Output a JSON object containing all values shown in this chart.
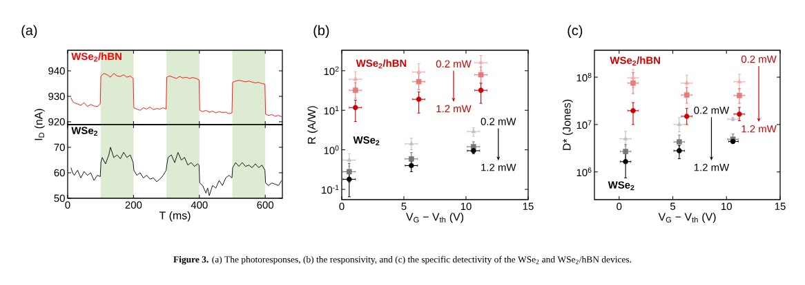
{
  "chart_data": [
    {
      "type": "line",
      "title": "(a)",
      "ylabel": "I$_{D}$ (nA)",
      "xlim": [
        0,
        652
      ],
      "xticks": [
        0,
        200,
        400,
        600
      ],
      "ylim": [
        918.9,
        948.1
      ],
      "yticks": [
        920,
        930,
        940
      ],
      "tick_labels": "y",
      "bands": [
        {
          "axis": "x",
          "from": 100,
          "to": 200,
          "color": "#dcebd2"
        },
        {
          "axis": "x",
          "from": 300,
          "to": 400,
          "color": "#dcebd2"
        },
        {
          "axis": "x",
          "from": 500,
          "to": 600,
          "color": "#dcebd2"
        }
      ],
      "series": [
        {
          "name": "WSe$_{2}$/hBN",
          "color": "#ff0000",
          "x": [
            10,
            15,
            20,
            30,
            40,
            50,
            60,
            70,
            80,
            90,
            99,
            101,
            110,
            120,
            130,
            140,
            150,
            160,
            170,
            180,
            190,
            199,
            201,
            210,
            220,
            230,
            240,
            250,
            260,
            270,
            280,
            290,
            299,
            301,
            310,
            320,
            330,
            340,
            350,
            360,
            370,
            380,
            390,
            399,
            401,
            410,
            420,
            430,
            440,
            450,
            460,
            470,
            480,
            490,
            499,
            501,
            510,
            520,
            530,
            540,
            550,
            560,
            570,
            580,
            590,
            599,
            601,
            610,
            620,
            630,
            640,
            650
          ],
          "values": [
            929.5,
            928,
            927.5,
            927,
            926.5,
            927.5,
            926,
            926.8,
            926.2,
            926,
            927,
            938,
            939,
            938.5,
            937.5,
            939,
            938,
            937.8,
            938.5,
            937.5,
            938,
            937,
            925.5,
            925,
            924.5,
            925.5,
            925,
            925.8,
            924.8,
            925.2,
            925,
            925.5,
            925,
            937.5,
            938,
            937.5,
            937,
            937.8,
            937.2,
            937.5,
            937,
            937.4,
            937,
            936.5,
            924.5,
            924,
            924.5,
            923.8,
            924.2,
            923.5,
            924,
            923.6,
            923.8,
            923.2,
            923.5,
            935.5,
            936,
            936.3,
            936,
            935.7,
            936,
            935.6,
            935.3,
            935.5,
            935,
            934.8,
            923,
            922.5,
            922.8,
            922.2,
            922.5,
            922
          ]
        }
      ],
      "annotations": [
        "**Figure 3.** (a) The photoresponses, (b) the responsivity, and (c) the specific detectivity of the WSe$_{2}$ and WSe$_{2}$/hBN devices."
      ]
    },
    {
      "type": "line",
      "xlabel": "T (ms)",
      "xlim": [
        0,
        652
      ],
      "xticks": [
        0,
        200,
        400,
        600
      ],
      "ylim": [
        50,
        78.9
      ],
      "yticks": [
        50,
        60,
        70
      ],
      "bands": [
        {
          "axis": "x",
          "from": 100,
          "to": 200,
          "color": "#dcebd2"
        },
        {
          "axis": "x",
          "from": 300,
          "to": 400,
          "color": "#dcebd2"
        },
        {
          "axis": "x",
          "from": 500,
          "to": 600,
          "color": "#dcebd2"
        }
      ],
      "series": [
        {
          "name": "WSe$_{2}$",
          "color": "#000000",
          "x": [
            10,
            15,
            20,
            30,
            40,
            50,
            60,
            70,
            80,
            90,
            99,
            101,
            105,
            115,
            125,
            130,
            140,
            150,
            160,
            170,
            180,
            190,
            199,
            201,
            210,
            220,
            230,
            240,
            250,
            260,
            270,
            280,
            290,
            299,
            301,
            305,
            315,
            325,
            335,
            345,
            355,
            365,
            375,
            385,
            395,
            399,
            401,
            410,
            420,
            425,
            430,
            440,
            450,
            460,
            470,
            480,
            490,
            499,
            501,
            510,
            520,
            530,
            540,
            550,
            560,
            570,
            580,
            590,
            599,
            601,
            610,
            620,
            630,
            640,
            650
          ],
          "values": [
            62,
            60,
            59,
            61,
            58,
            60.5,
            59,
            60,
            57,
            59,
            58.5,
            64,
            66,
            63.5,
            67,
            70,
            66,
            67,
            65.5,
            68,
            66,
            67,
            64,
            61,
            59,
            60,
            58,
            59,
            57.5,
            58,
            56.5,
            57.5,
            59,
            61,
            63,
            66,
            67,
            64,
            68,
            65,
            66,
            63,
            64,
            62.5,
            63.5,
            63,
            56,
            55,
            52,
            54,
            51,
            55,
            54,
            57,
            55,
            58,
            59,
            58,
            62,
            64,
            62.5,
            64,
            62.5,
            63,
            62,
            63.5,
            62,
            63,
            61,
            56,
            55,
            56,
            55.5,
            55,
            57
          ]
        }
      ]
    },
    {
      "type": "scatter",
      "title": "(b)",
      "xlabel": "V$_{G}$ − V$_{th}$ (V)",
      "ylabel": "R (A/W)",
      "xlim": [
        0,
        15
      ],
      "xticks": [
        0,
        5,
        10,
        15
      ],
      "ylim": [
        0.055,
        330
      ],
      "log": "y",
      "yticks": [
        {
          "value": 0.1,
          "label": "10$^{-1}$"
        },
        {
          "value": 1,
          "label": "10$^{0}$"
        },
        {
          "value": 10,
          "label": "10$^{1}$"
        },
        {
          "value": 100,
          "label": "10$^{2}$"
        }
      ],
      "series": [
        {
          "color": "#f4a8a8",
          "marker": "triangle",
          "x": [
            1.1,
            6.2,
            11.2
          ],
          "values": [
            61,
            93,
            160
          ],
          "errors": [
            [
              38,
              95
            ],
            [
              58,
              150
            ],
            [
              100,
              245
            ]
          ],
          "xerrors": [
            0.5,
            0.5,
            0.5
          ]
        },
        {
          "color": "#e87a7a",
          "marker": "square",
          "x": [
            1.1,
            6.2,
            11.2
          ],
          "values": [
            32,
            53,
            79
          ],
          "errors": [
            [
              20,
              50
            ],
            [
              33,
              85
            ],
            [
              50,
              125
            ]
          ],
          "xerrors": [
            0.5,
            0.5,
            0.5
          ]
        },
        {
          "color": "#cc0000",
          "marker": "circle",
          "x": [
            1.1,
            6.2,
            11.2
          ],
          "values": [
            11.7,
            19,
            32
          ],
          "errors": [
            [
              5.2,
              18
            ],
            [
              8.5,
              29
            ],
            [
              15,
              48
            ]
          ],
          "xerrors": [
            0.5,
            0.5,
            0.5
          ]
        },
        {
          "color": "#c0c0c0",
          "marker": "triangle",
          "x": [
            0.6,
            5.6,
            10.6
          ],
          "values": [
            0.55,
            1.42,
            2.9
          ],
          "errors": [
            [
              0.38,
              0.8
            ],
            [
              1.0,
              2.0
            ],
            [
              2.2,
              3.6
            ]
          ],
          "xerrors": [
            0.5,
            0.5,
            0.5
          ]
        },
        {
          "color": "#777777",
          "marker": "square",
          "x": [
            0.6,
            5.6,
            10.6
          ],
          "values": [
            0.28,
            0.59,
            1.2
          ],
          "errors": [
            [
              0.15,
              0.45
            ],
            [
              0.4,
              0.85
            ],
            [
              0.9,
              1.6
            ]
          ],
          "xerrors": [
            0.5,
            0.5,
            0.5
          ]
        },
        {
          "color": "#000000",
          "marker": "circle",
          "x": [
            0.6,
            5.6,
            10.6
          ],
          "values": [
            0.18,
            0.4,
            0.95
          ],
          "errors": [
            [
              0.065,
              0.3
            ],
            [
              0.28,
              0.52
            ],
            [
              0.8,
              1.15
            ]
          ],
          "xerrors": [
            0.5,
            0.5,
            0.5
          ]
        }
      ],
      "annotations": [
        "WSe$_{2}$/hBN",
        "0.2 mW",
        "1.2 mW",
        "WSe$_{2}$",
        "0.2 mW",
        "1.2 mW"
      ]
    },
    {
      "type": "scatter",
      "title": "(c)",
      "xlabel": "V$_{G}$ − V$_{th}$ (V)",
      "ylabel": "D* (Jones)",
      "xlim": [
        -2.3,
        15
      ],
      "xticks": [
        0,
        5,
        10,
        15
      ],
      "ylim": [
        260000,
        370000000
      ],
      "log": "y",
      "yticks": [
        {
          "value": 1000000,
          "label": "10$^{6}$"
        },
        {
          "value": 10000000,
          "label": "10$^{7}$"
        },
        {
          "value": 100000000,
          "label": "10$^{8}$"
        }
      ],
      "series": [
        {
          "color": "#f4a8a8",
          "marker": "triangle",
          "x": [
            1.3,
            6.3,
            11.2
          ],
          "values": [
            97000000,
            75000000,
            80000000
          ],
          "errors": [
            [
              60000000,
              145000000
            ],
            [
              50000000,
              110000000
            ],
            [
              55000000,
              115000000
            ]
          ],
          "xerrors": [
            0.5,
            0.5,
            0.5
          ]
        },
        {
          "color": "#e87a7a",
          "marker": "square",
          "x": [
            1.3,
            6.3,
            11.2
          ],
          "values": [
            75000000,
            42000000,
            41000000
          ],
          "errors": [
            [
              45000000,
              125000000
            ],
            [
              28000000,
              60000000
            ],
            [
              28000000,
              58000000
            ]
          ],
          "xerrors": [
            0.5,
            0.5,
            0.5
          ]
        },
        {
          "color": "#cc0000",
          "marker": "circle",
          "x": [
            1.3,
            6.3,
            11.2
          ],
          "values": [
            19600000,
            14900000,
            16600000
          ],
          "errors": [
            [
              10000000,
              29000000
            ],
            [
              10000000,
              22000000
            ],
            [
              12000000,
              23000000
            ]
          ],
          "xerrors": [
            0.5,
            0.5,
            0.5
          ]
        },
        {
          "color": "#c0c0c0",
          "marker": "triangle",
          "x": [
            0.6,
            5.6,
            10.6
          ],
          "values": [
            5000000,
            10000000,
            13000000
          ],
          "errors": [
            [
              3500000,
              7200000
            ],
            [
              7000000,
              14000000
            ],
            [
              12000000,
              14000000
            ]
          ],
          "xerrors": [
            0.5,
            0.5,
            0.5
          ]
        },
        {
          "color": "#777777",
          "marker": "square",
          "x": [
            0.6,
            5.6,
            10.6
          ],
          "values": [
            2700000,
            4300000,
            4900000
          ],
          "errors": [
            [
              1800000,
              3800000
            ],
            [
              3000000,
              6000000
            ],
            [
              4300000,
              6300000
            ]
          ],
          "xerrors": [
            0.5,
            0.5,
            0.5
          ]
        },
        {
          "color": "#000000",
          "marker": "circle",
          "x": [
            0.6,
            5.6,
            10.6
          ],
          "values": [
            1650000,
            2800000,
            4400000
          ],
          "errors": [
            [
              750000,
              2500000
            ],
            [
              1900000,
              3600000
            ],
            [
              4000000,
              5000000
            ]
          ],
          "xerrors": [
            0.5,
            0.5,
            [
              10.2,
              11.1
            ]
          ]
        }
      ],
      "annotations": [
        "WSe$_{2}$/hBN",
        "0.2 mW",
        "1.2 mW",
        "WSe$_{2}$",
        "0.2 mW",
        "1.2 mW"
      ]
    }
  ]
}
